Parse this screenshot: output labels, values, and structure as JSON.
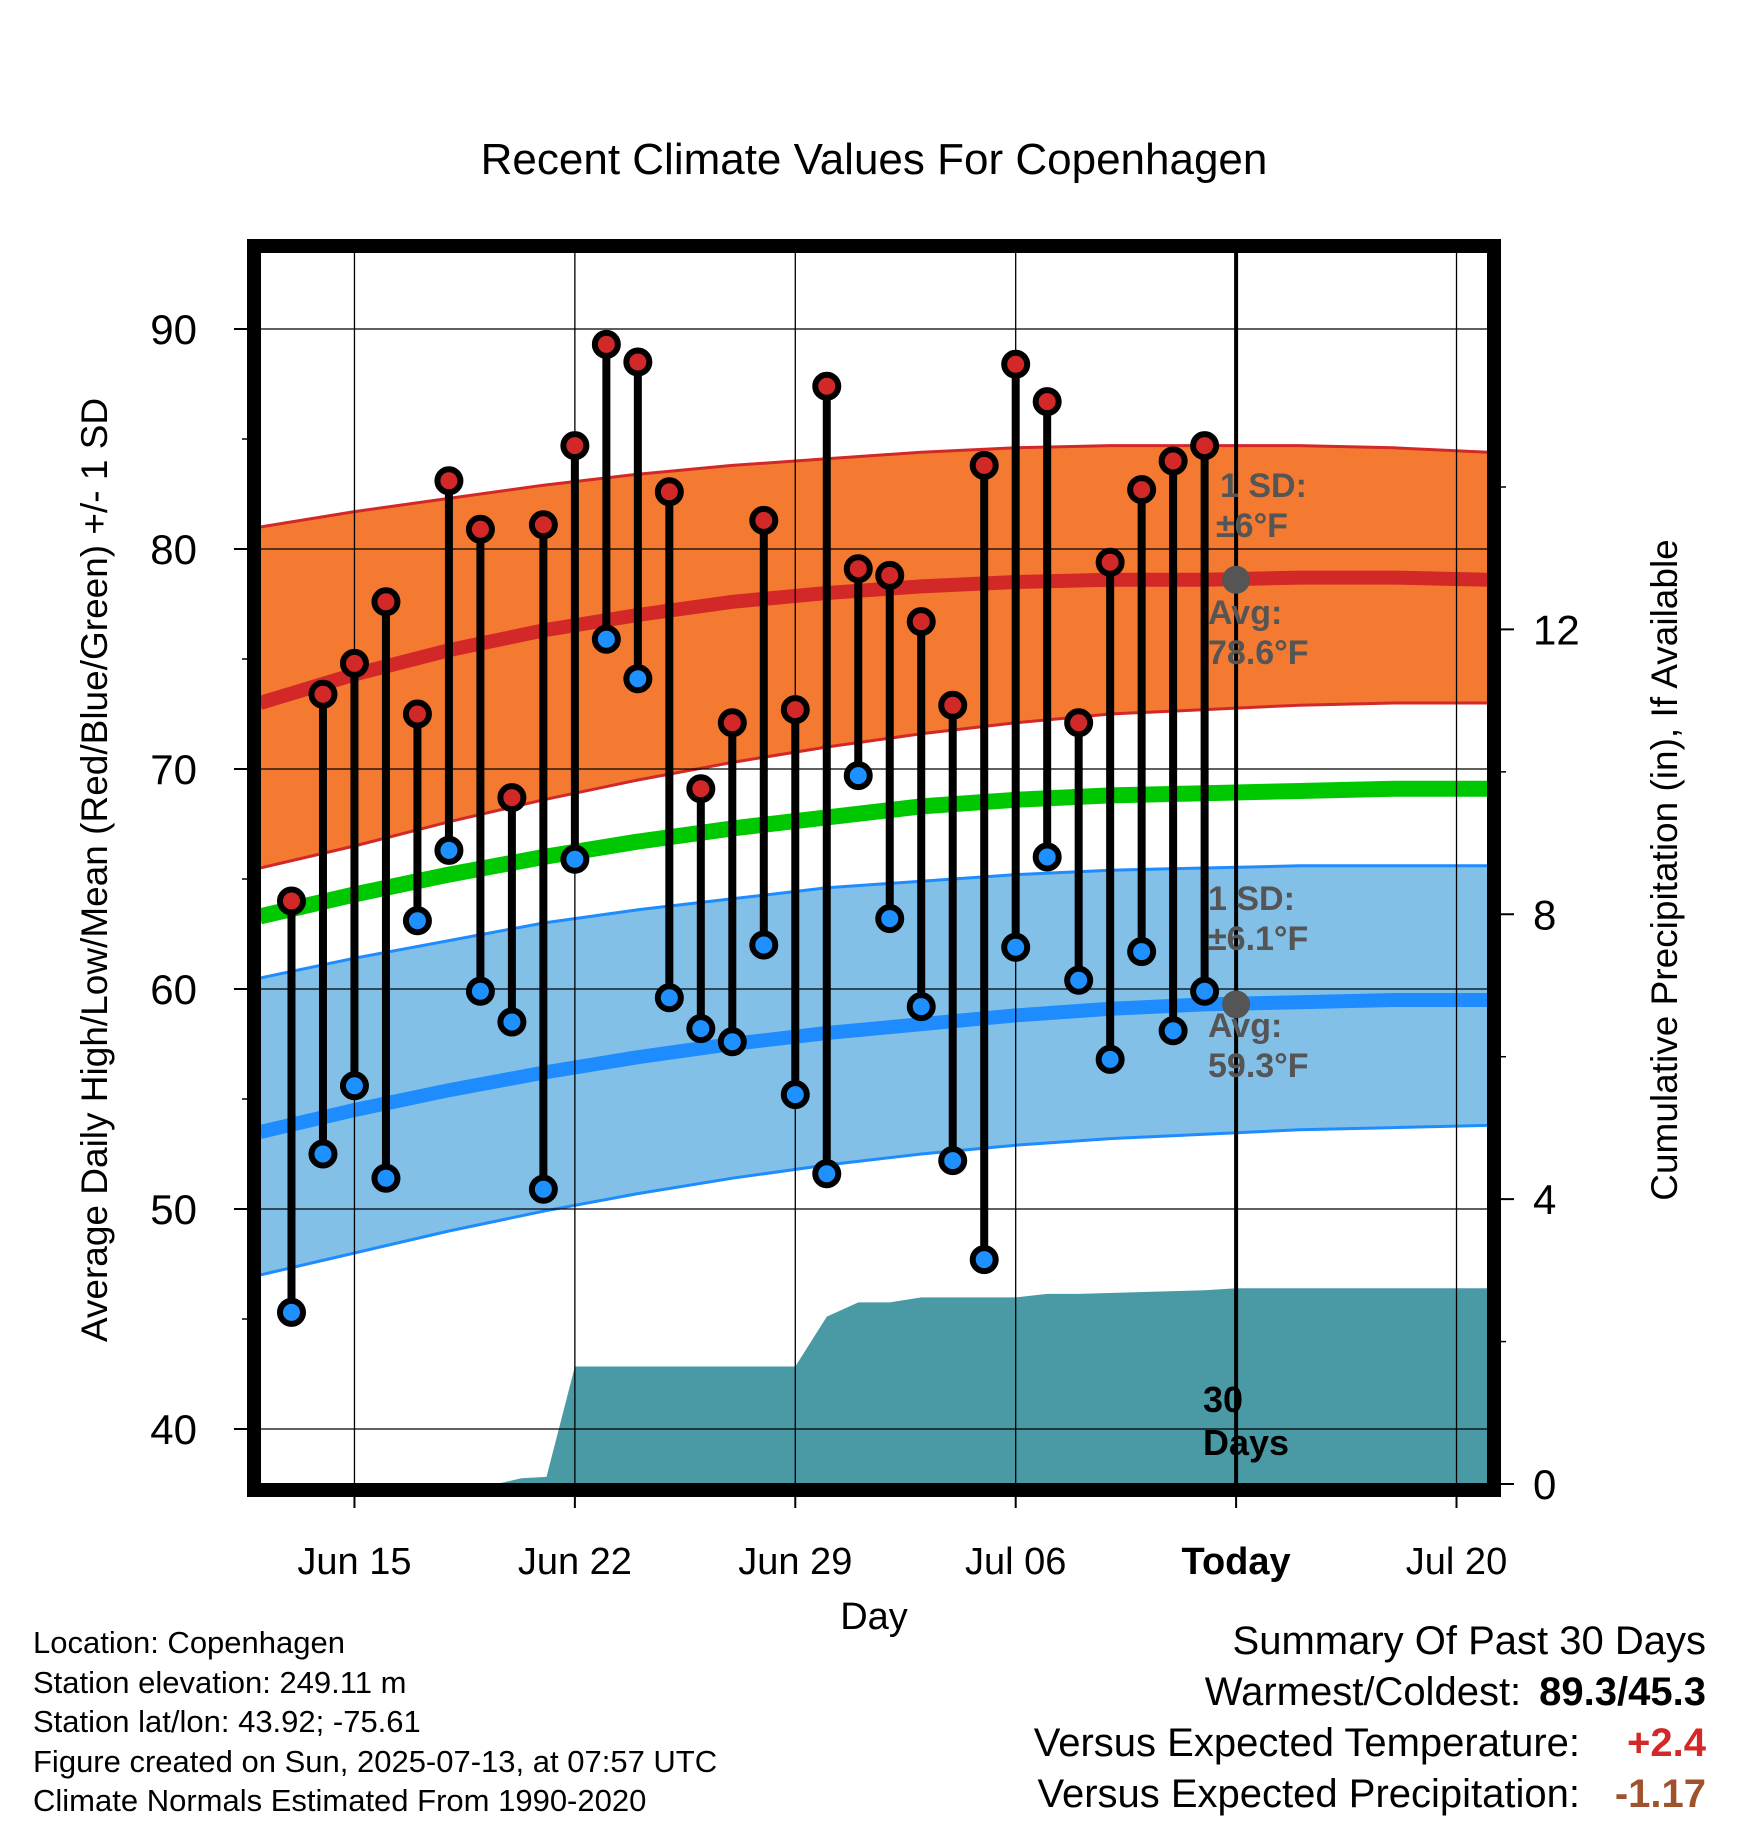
{
  "chart_data": {
    "type": "line",
    "title": "Recent Climate Values For Copenhagen",
    "xlabel": "Day",
    "ylabel": "Average Daily High/Low/Mean (Red/Blue/Green) +/- 1 SD",
    "y2label": "Cumulative Precipitation (in), If Available",
    "x_tick_labels": [
      "Jun 15",
      "Jun 22",
      "Jun 29",
      "Jul 06",
      "Today",
      "Jul 20"
    ],
    "x_tick_days": [
      15,
      22,
      29,
      36,
      43,
      50
    ],
    "xlim": [
      12,
      51
    ],
    "ylim": [
      37.5,
      93.5
    ],
    "y_ticks": [
      40,
      50,
      60,
      70,
      80,
      90
    ],
    "y2lim": [
      0,
      17.3
    ],
    "y2_ticks": [
      0,
      4,
      8,
      12
    ],
    "today_day": 43,
    "days": [
      13,
      14,
      15,
      16,
      17,
      18,
      19,
      20,
      21,
      22,
      23,
      24,
      25,
      26,
      27,
      28,
      29,
      30,
      31,
      32,
      33,
      34,
      35,
      36,
      37,
      38,
      39,
      40,
      41,
      42
    ],
    "highs": [
      64.0,
      73.4,
      74.8,
      77.6,
      72.5,
      83.1,
      80.9,
      68.7,
      81.1,
      84.7,
      89.3,
      88.5,
      82.6,
      69.1,
      72.1,
      81.3,
      72.7,
      87.4,
      79.1,
      78.8,
      76.7,
      72.9,
      83.8,
      88.4,
      86.7,
      72.1,
      79.4,
      82.7,
      84.0,
      84.7
    ],
    "lows": [
      45.3,
      52.5,
      55.6,
      51.4,
      63.1,
      66.3,
      59.9,
      58.5,
      50.9,
      65.9,
      75.9,
      74.1,
      59.6,
      58.2,
      57.6,
      62.0,
      55.2,
      51.6,
      69.7,
      63.2,
      59.2,
      52.2,
      47.7,
      61.9,
      66.0,
      60.4,
      56.8,
      61.7,
      58.1,
      59.9
    ],
    "normals": {
      "days": [
        12,
        15,
        18,
        21,
        24,
        27,
        30,
        33,
        36,
        39,
        42,
        45,
        48,
        51
      ],
      "high_mean": [
        73.0,
        74.3,
        75.4,
        76.3,
        77.0,
        77.6,
        78.0,
        78.3,
        78.5,
        78.6,
        78.6,
        78.7,
        78.7,
        78.6
      ],
      "high_upper": [
        81.0,
        81.7,
        82.3,
        82.9,
        83.4,
        83.8,
        84.1,
        84.4,
        84.6,
        84.7,
        84.7,
        84.7,
        84.6,
        84.4
      ],
      "high_lower": [
        65.5,
        66.5,
        67.6,
        68.6,
        69.5,
        70.3,
        71.0,
        71.6,
        72.1,
        72.5,
        72.7,
        72.9,
        73.0,
        73.0
      ],
      "mean": [
        63.3,
        64.3,
        65.2,
        66.0,
        66.7,
        67.3,
        67.8,
        68.3,
        68.6,
        68.8,
        68.9,
        69.0,
        69.1,
        69.1
      ],
      "low_mean": [
        53.5,
        54.5,
        55.4,
        56.2,
        56.9,
        57.5,
        58.0,
        58.4,
        58.8,
        59.1,
        59.3,
        59.4,
        59.5,
        59.5
      ],
      "low_upper": [
        60.5,
        61.4,
        62.2,
        63.0,
        63.6,
        64.1,
        64.6,
        64.9,
        65.2,
        65.4,
        65.5,
        65.6,
        65.6,
        65.6
      ],
      "low_lower": [
        47.0,
        48.0,
        49.0,
        49.9,
        50.7,
        51.4,
        52.0,
        52.5,
        52.9,
        53.2,
        53.4,
        53.6,
        53.7,
        53.8
      ]
    },
    "precip_cumulative": {
      "days": [
        12,
        19.5,
        20.3,
        21.1,
        22.0,
        29.0,
        30.0,
        31.0,
        32.0,
        33.0,
        36.0,
        37.0,
        38.0,
        42.0,
        43.0,
        51.0
      ],
      "values": [
        0.0,
        0.0,
        0.08,
        0.1,
        1.65,
        1.65,
        2.35,
        2.55,
        2.55,
        2.62,
        2.62,
        2.67,
        2.67,
        2.72,
        2.75,
        2.75
      ]
    },
    "annotations": {
      "high_sd_label": "1 SD:",
      "high_sd_value": "±6°F",
      "high_avg_label": "Avg:",
      "high_avg_value": "78.6°F",
      "low_sd_label": "1 SD:",
      "low_sd_value": "±6.1°F",
      "low_avg_label": "Avg:",
      "low_avg_value": "59.3°F",
      "period_value": "30",
      "period_unit": "Days"
    },
    "colors": {
      "high_band": "#f47a31",
      "high_line": "#d22828",
      "low_band": "#82c0e8",
      "low_line": "#1e8cff",
      "mean_line": "#00c800",
      "precip": "#4a9aa6",
      "high_marker": "#d22828",
      "low_marker": "#1e90ff",
      "annotation_text": "#555555"
    }
  },
  "info": {
    "location": "Location: Copenhagen",
    "elevation": "Station elevation: 249.11 m",
    "latlon": "Station lat/lon: 43.92; -75.61",
    "created": "Figure created on Sun, 2025-07-13, at 07:57 UTC",
    "normals": "Climate Normals Estimated From 1990-2020"
  },
  "summary": {
    "title": "Summary Of Past 30 Days",
    "warm_cold_label": "Warmest/Coldest:",
    "warm_cold_value": "89.3/45.3",
    "temp_label": "Versus Expected Temperature:",
    "temp_value": "+2.4",
    "temp_color": "#d22828",
    "precip_label": "Versus Expected Precipitation:",
    "precip_value": "-1.17",
    "precip_color": "#a0522d"
  }
}
